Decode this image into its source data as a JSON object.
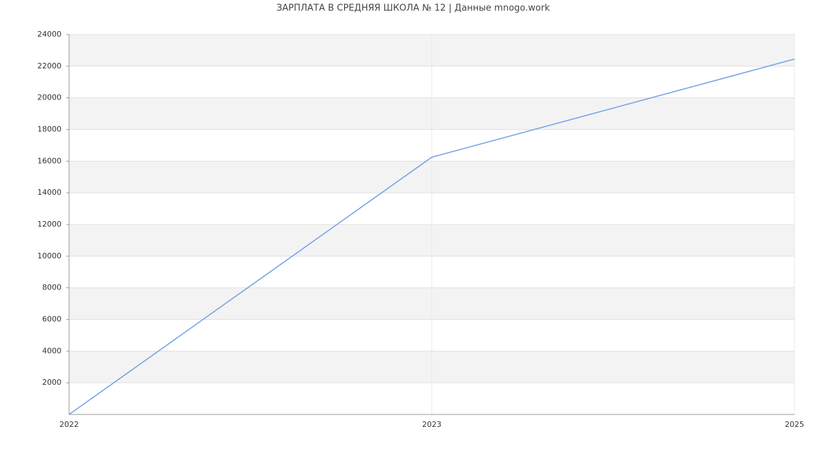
{
  "chart_data": {
    "type": "line",
    "title": "ЗАРПЛАТА В СРЕДНЯЯ ШКОЛА № 12 | Данные mnogo.work",
    "categories": [
      "2022",
      "2023",
      "2025"
    ],
    "values": [
      0,
      16250,
      22450
    ],
    "color": "#6f9fe8",
    "ylim": [
      0,
      24000
    ],
    "yticks": [
      2000,
      4000,
      6000,
      8000,
      10000,
      12000,
      14000,
      16000,
      18000,
      20000,
      22000,
      24000
    ],
    "grid": true
  }
}
